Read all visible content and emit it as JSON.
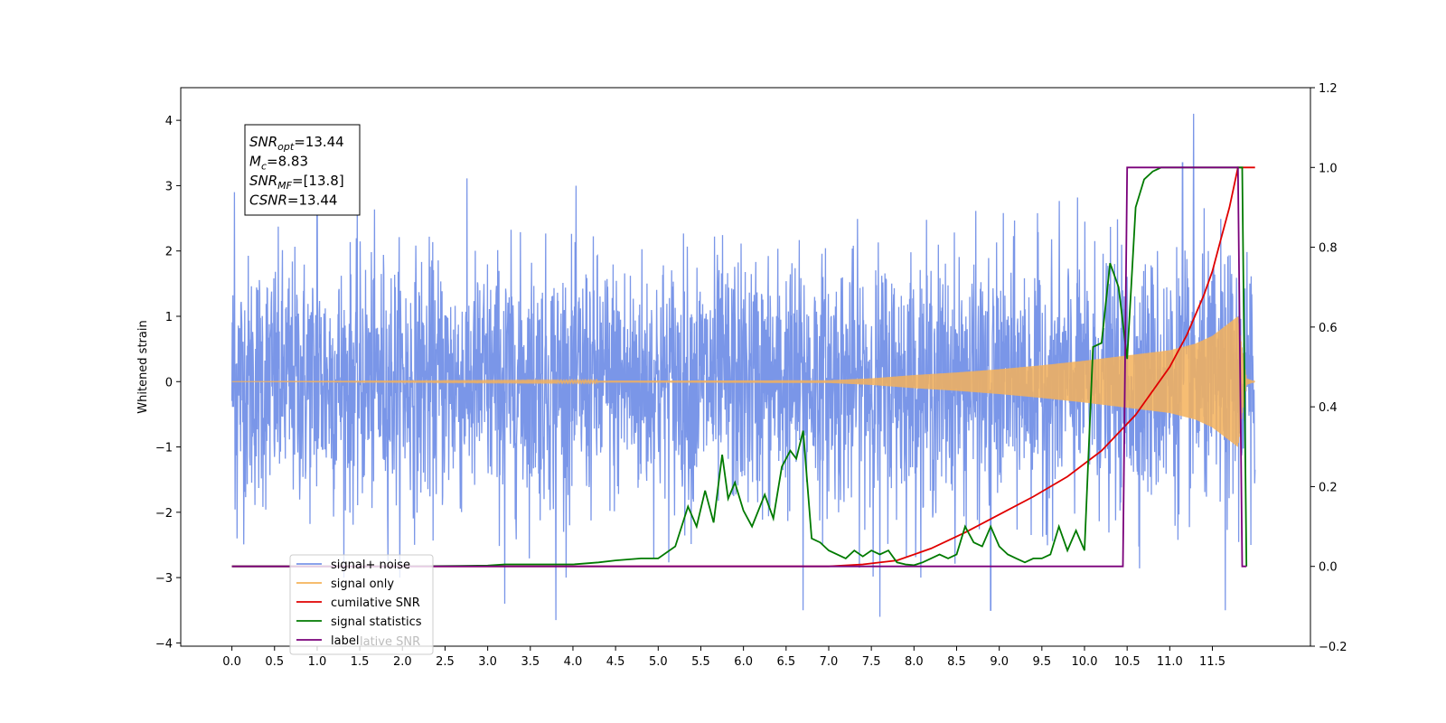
{
  "chart_data": {
    "type": "line",
    "ylabel": "Whitened strain",
    "xlim": [
      -0.6,
      12.65
    ],
    "ylim": [
      -4.05,
      4.5
    ],
    "ylim_right": [
      -0.2,
      1.2
    ],
    "x_ticks": [
      0.0,
      0.5,
      1.0,
      1.5,
      2.0,
      2.5,
      3.0,
      3.5,
      4.0,
      4.5,
      5.0,
      5.5,
      6.0,
      6.5,
      7.0,
      7.5,
      8.0,
      8.5,
      9.0,
      9.5,
      10.0,
      10.5,
      11.0,
      11.5
    ],
    "x_tick_labels": [
      "0.0",
      "0.5",
      "1.0",
      "1.5",
      "2.0",
      "2.5",
      "3.0",
      "3.5",
      "4.0",
      "4.5",
      "5.0",
      "5.5",
      "6.0",
      "6.5",
      "7.0",
      "7.5",
      "8.0",
      "8.5",
      "9.0",
      "9.5",
      "10.0",
      "10.5",
      "11.0",
      "11.5"
    ],
    "y_ticks": [
      -4,
      -3,
      -2,
      -1,
      0,
      1,
      2,
      3,
      4
    ],
    "y_tick_labels": [
      "−4",
      "−3",
      "−2",
      "−1",
      "0",
      "1",
      "2",
      "3",
      "4"
    ],
    "y_ticks_right": [
      -0.2,
      0.0,
      0.2,
      0.4,
      0.6,
      0.8,
      1.0,
      1.2
    ],
    "y_tick_labels_right": [
      "−0.2",
      "0.0",
      "0.2",
      "0.4",
      "0.6",
      "0.8",
      "1.0",
      "1.2"
    ],
    "grid": false,
    "legend_position": "lower-left",
    "info_box": [
      {
        "base": "SNR",
        "sub": "opt",
        "rest": "=13.44"
      },
      {
        "base": "M",
        "sub": "c",
        "rest": "=8.83"
      },
      {
        "base": "SNR",
        "sub": "MF",
        "rest": "=[13.8]"
      },
      {
        "base": "CSNR",
        "sub": "",
        "rest": "=13.44"
      }
    ],
    "series": [
      {
        "name": "signal+ noise",
        "axis": "left",
        "color": "#7a96e8",
        "description_kind": "noise",
        "x_range": [
          0.0,
          12.0
        ],
        "typical_amplitude": [
          -2.1,
          2.3
        ],
        "extremes": [
          {
            "x": 0.03,
            "y": 2.9
          },
          {
            "x": 0.06,
            "y": -2.4
          },
          {
            "x": 1.0,
            "y": 2.6
          },
          {
            "x": 3.2,
            "y": -3.4
          },
          {
            "x": 3.8,
            "y": -3.65
          },
          {
            "x": 6.7,
            "y": -3.5
          },
          {
            "x": 7.6,
            "y": -3.6
          },
          {
            "x": 8.9,
            "y": -3.5
          },
          {
            "x": 11.15,
            "y": 3.35
          },
          {
            "x": 11.28,
            "y": 4.1
          },
          {
            "x": 11.65,
            "y": -3.5
          },
          {
            "x": 11.95,
            "y": -2.5
          }
        ]
      },
      {
        "name": "signal only",
        "axis": "left",
        "color": "#f5b25a",
        "description_kind": "chirp",
        "x_range": [
          0.0,
          12.0
        ],
        "envelope": {
          "x": [
            0.0,
            7.0,
            7.5,
            8.0,
            8.5,
            9.0,
            9.5,
            10.0,
            10.5,
            11.0,
            11.3,
            11.5,
            11.7,
            11.8,
            11.85,
            11.9,
            12.0
          ],
          "amplitude": [
            0.0,
            0.02,
            0.05,
            0.1,
            0.14,
            0.19,
            0.25,
            0.32,
            0.4,
            0.48,
            0.58,
            0.7,
            0.9,
            1.0,
            0.5,
            0.05,
            0.0
          ]
        }
      },
      {
        "name": "cumilative SNR",
        "axis": "right",
        "color": "#e00000",
        "x": [
          0.0,
          6.0,
          7.0,
          7.4,
          7.8,
          8.2,
          8.6,
          9.0,
          9.4,
          9.8,
          10.2,
          10.6,
          11.0,
          11.2,
          11.4,
          11.5,
          11.6,
          11.7,
          11.75,
          11.8,
          11.85,
          12.0
        ],
        "y": [
          0.0,
          0.0,
          0.0,
          0.005,
          0.015,
          0.045,
          0.085,
          0.13,
          0.175,
          0.225,
          0.29,
          0.38,
          0.5,
          0.58,
          0.68,
          0.74,
          0.82,
          0.9,
          0.95,
          1.0,
          1.0,
          1.0
        ]
      },
      {
        "name": "signal statistics",
        "axis": "right",
        "color": "#007a00",
        "x": [
          0.0,
          1.0,
          2.0,
          3.0,
          3.2,
          3.5,
          4.0,
          4.3,
          4.5,
          4.8,
          5.0,
          5.2,
          5.35,
          5.45,
          5.55,
          5.65,
          5.75,
          5.82,
          5.9,
          6.0,
          6.1,
          6.25,
          6.35,
          6.45,
          6.55,
          6.62,
          6.7,
          6.8,
          6.9,
          7.0,
          7.2,
          7.3,
          7.4,
          7.5,
          7.6,
          7.7,
          7.8,
          7.9,
          8.0,
          8.1,
          8.2,
          8.3,
          8.4,
          8.5,
          8.6,
          8.7,
          8.8,
          8.9,
          9.0,
          9.1,
          9.2,
          9.3,
          9.4,
          9.5,
          9.6,
          9.7,
          9.8,
          9.9,
          10.0,
          10.1,
          10.2,
          10.3,
          10.4,
          10.5,
          10.6,
          10.7,
          10.8,
          10.9,
          11.0,
          11.2,
          11.4,
          11.6,
          11.75,
          11.85,
          11.9
        ],
        "y": [
          0.0,
          0.0,
          0.0,
          0.002,
          0.005,
          0.005,
          0.005,
          0.01,
          0.015,
          0.02,
          0.02,
          0.05,
          0.15,
          0.1,
          0.19,
          0.11,
          0.28,
          0.17,
          0.21,
          0.14,
          0.1,
          0.18,
          0.12,
          0.25,
          0.29,
          0.27,
          0.34,
          0.07,
          0.06,
          0.04,
          0.02,
          0.04,
          0.025,
          0.04,
          0.03,
          0.04,
          0.01,
          0.005,
          0.003,
          0.01,
          0.02,
          0.03,
          0.02,
          0.03,
          0.1,
          0.06,
          0.05,
          0.1,
          0.05,
          0.03,
          0.02,
          0.01,
          0.02,
          0.02,
          0.03,
          0.1,
          0.04,
          0.09,
          0.04,
          0.55,
          0.56,
          0.76,
          0.7,
          0.52,
          0.9,
          0.97,
          0.99,
          1.0,
          1.0,
          1.0,
          1.0,
          1.0,
          1.0,
          1.0,
          0.0
        ]
      },
      {
        "name": "label",
        "axis": "right",
        "color": "#7a007a",
        "x": [
          0.0,
          10.45,
          10.5,
          11.8,
          11.85,
          11.9
        ],
        "y": [
          0.0,
          0.0,
          1.0,
          1.0,
          0.0,
          0.0
        ]
      }
    ],
    "legend_entries": [
      {
        "label": "signal+ noise",
        "color": "#7a96e8"
      },
      {
        "label": "signal only",
        "color": "#f5b25a"
      },
      {
        "label": "cumilative SNR",
        "color": "#e00000"
      },
      {
        "label": "signal statistics",
        "color": "#007a00"
      },
      {
        "label": "label",
        "color": "#7a007a"
      }
    ],
    "legend_ghost_text": "lative SNR"
  }
}
